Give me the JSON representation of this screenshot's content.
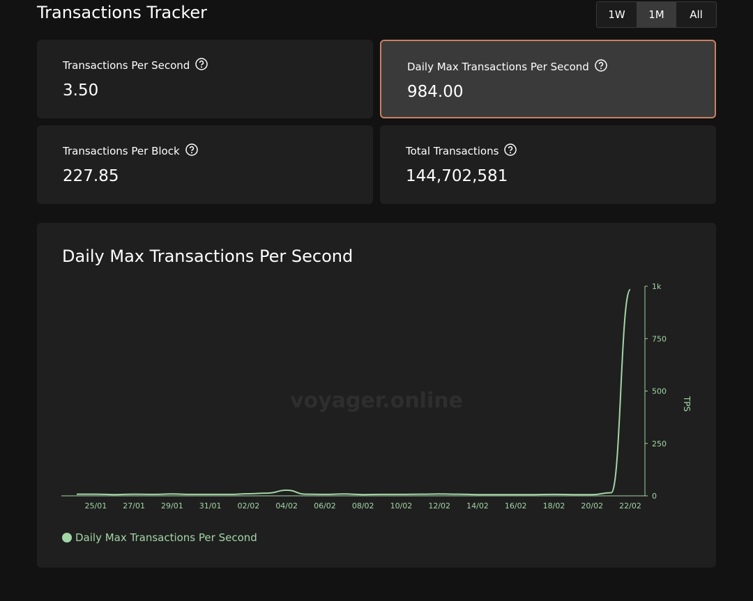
{
  "header": {
    "title": "Transactions Tracker",
    "ranges": [
      "1W",
      "1M",
      "All"
    ],
    "active_range": 1
  },
  "stats": [
    {
      "label": "Transactions Per Second",
      "value": "3.50",
      "highlighted": false
    },
    {
      "label": "Daily Max Transactions Per Second",
      "value": "984.00",
      "highlighted": true
    },
    {
      "label": "Transactions Per Block",
      "value": "227.85",
      "highlighted": false
    },
    {
      "label": "Total Transactions",
      "value": "144,702,581",
      "highlighted": false
    }
  ],
  "chart": {
    "type": "line",
    "title": "Daily Max Transactions Per Second",
    "watermark": "voyager.online",
    "y_axis_label": "TPS",
    "categories": [
      null,
      "25/01",
      null,
      "27/01",
      null,
      "29/01",
      null,
      "31/01",
      null,
      "02/02",
      null,
      "04/02",
      null,
      "06/02",
      null,
      "08/02",
      null,
      "10/02",
      null,
      "12/02",
      null,
      "14/02",
      null,
      "16/02",
      null,
      "18/02",
      null,
      "20/02",
      null,
      "22/02"
    ],
    "series": [
      {
        "name": "Daily Max Transactions Per Second",
        "color": "#a3d6a6",
        "values": [
          8,
          8,
          6,
          8,
          7,
          9,
          7,
          7,
          7,
          10,
          13,
          27,
          8,
          7,
          9,
          6,
          7,
          7,
          8,
          9,
          8,
          6,
          6,
          6,
          6,
          7,
          6,
          6,
          15,
          984
        ]
      }
    ],
    "ylim": [
      0,
      1000
    ],
    "yticks": [
      0,
      250,
      500,
      750,
      {
        "value": 1000,
        "label": "1k"
      }
    ]
  }
}
